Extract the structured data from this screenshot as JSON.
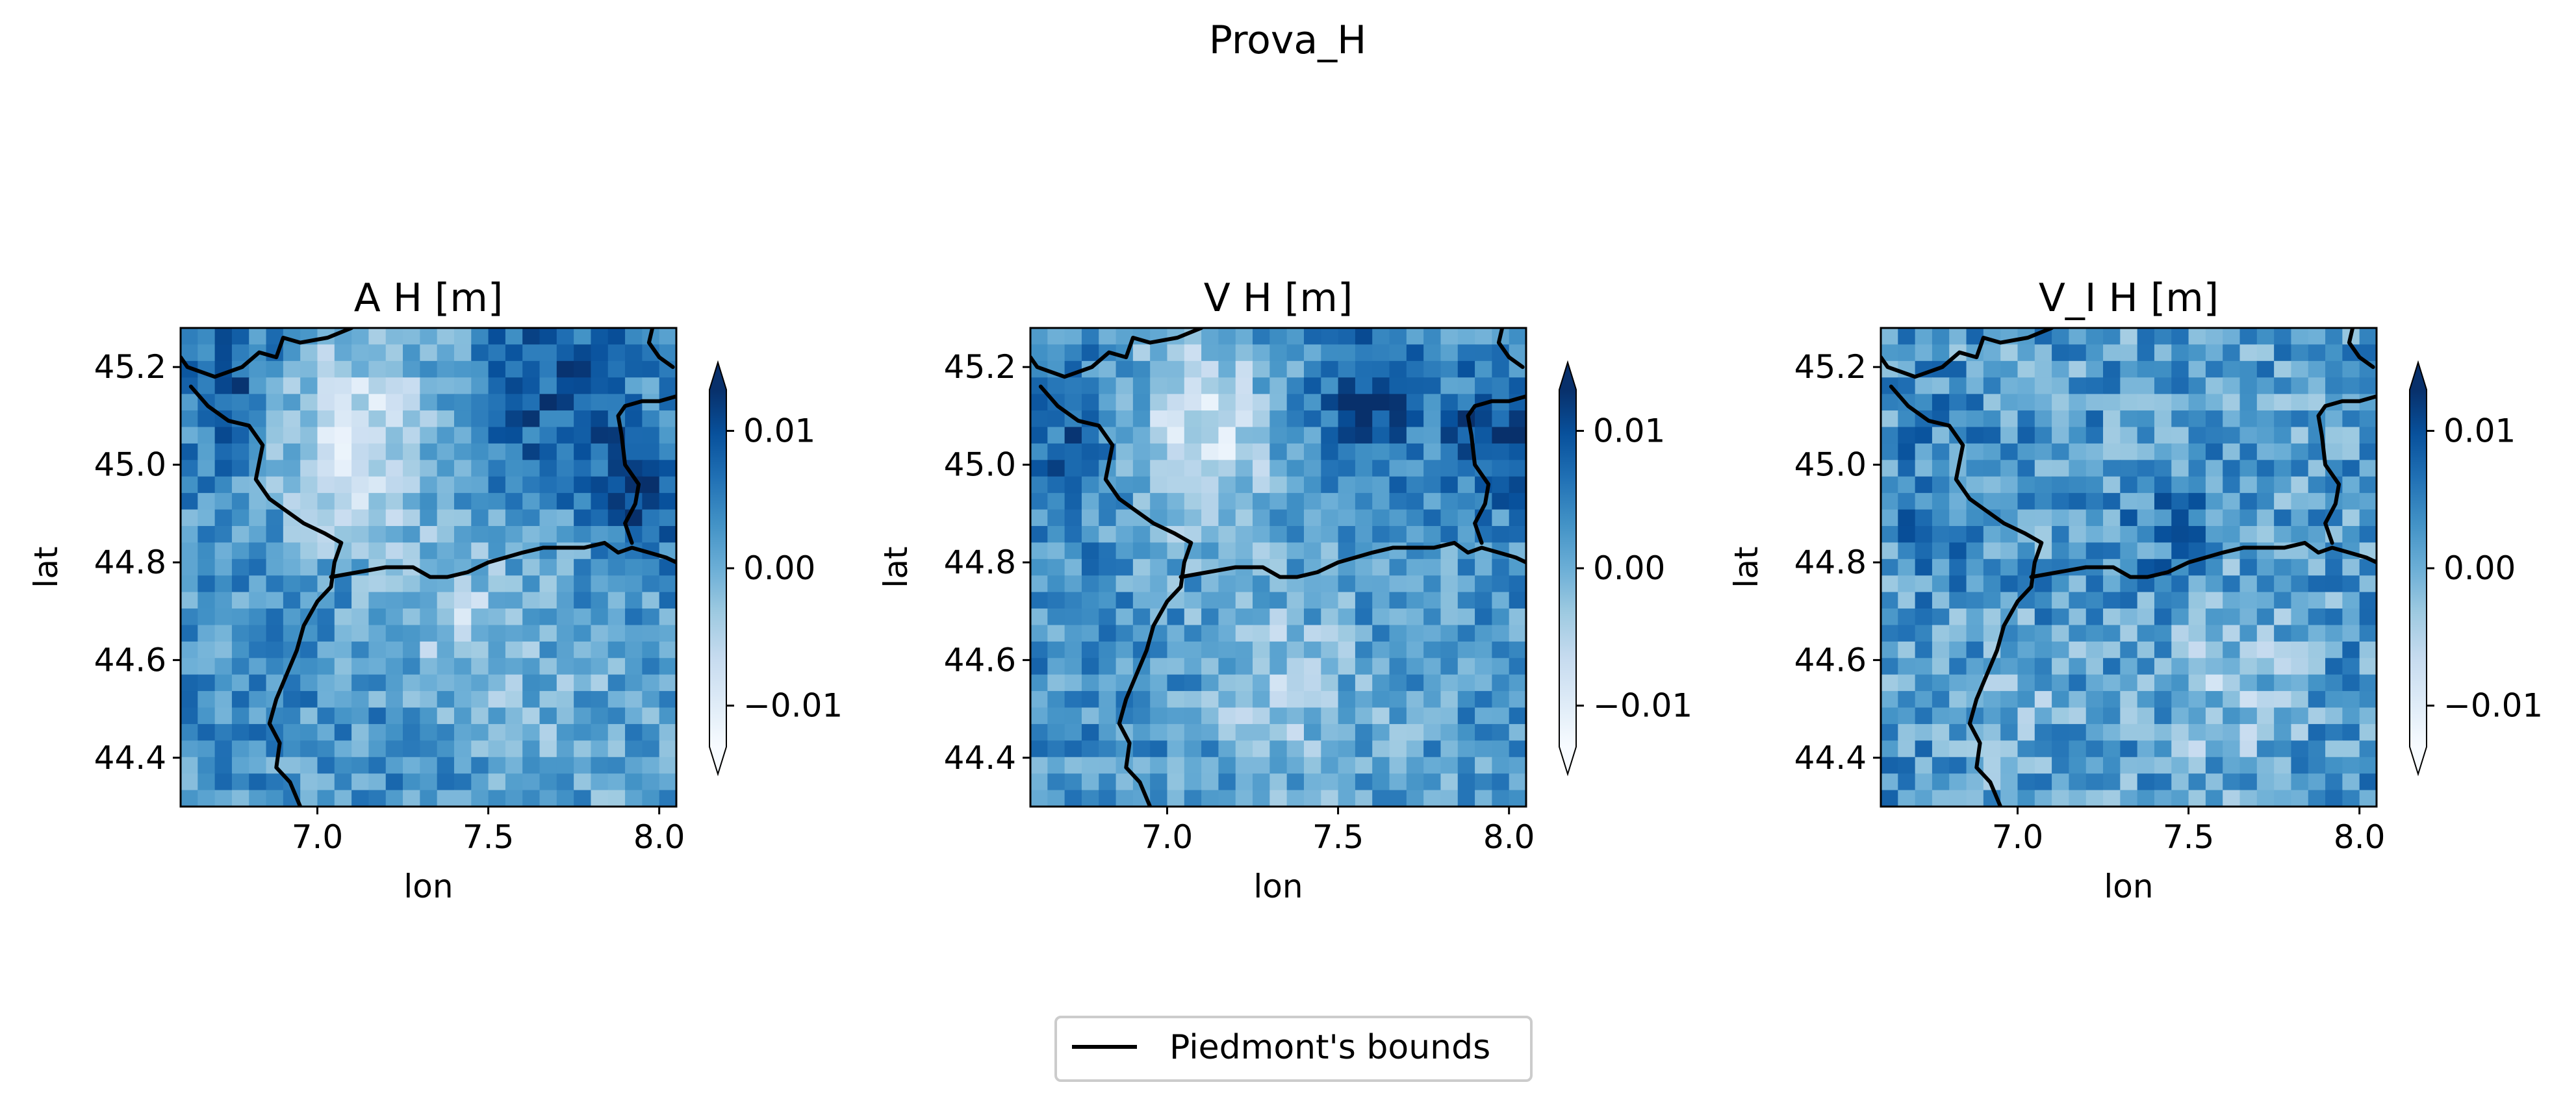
{
  "figure": {
    "suptitle": "Prova_H"
  },
  "colormap": {
    "name": "Blues",
    "stops": [
      "#f7fbff",
      "#deebf7",
      "#c6dbef",
      "#9ecae1",
      "#6baed6",
      "#4292c6",
      "#2171b5",
      "#08519c",
      "#08306b"
    ],
    "outline_color": "#000000"
  },
  "legend": {
    "label": "Piedmont's bounds",
    "line_color": "#000000",
    "placement": "bottom-center"
  },
  "chart_data": [
    {
      "type": "heatmap",
      "title": "A H [m]",
      "xlabel": "lon",
      "ylabel": "lat",
      "xlim": [
        6.6,
        8.05
      ],
      "ylim": [
        44.3,
        45.28
      ],
      "xticks": [
        7.0,
        7.5,
        8.0
      ],
      "xtick_labels": [
        "7.0",
        "7.5",
        "8.0"
      ],
      "yticks": [
        44.4,
        44.6,
        44.8,
        45.0,
        45.2
      ],
      "ytick_labels": [
        "44.4",
        "44.6",
        "44.8",
        "45.0",
        "45.2"
      ],
      "grid": "29x29 cells (values estimated)",
      "colorbar": {
        "range": [
          -0.013,
          0.013
        ],
        "extend": "both",
        "ticks": [
          -0.01,
          0.0,
          0.01
        ],
        "tick_labels": [
          "−0.01",
          "0.00",
          "0.01"
        ]
      },
      "field_seed": 1,
      "field_features": [
        {
          "lon": 6.75,
          "lat": 45.15,
          "amp": 0.006,
          "sigma": 0.15
        },
        {
          "lon": 7.1,
          "lat": 45.05,
          "amp": -0.012,
          "sigma": 0.22
        },
        {
          "lon": 7.4,
          "lat": 44.7,
          "amp": -0.007,
          "sigma": 0.18
        },
        {
          "lon": 7.7,
          "lat": 45.15,
          "amp": 0.006,
          "sigma": 0.2
        },
        {
          "lon": 7.95,
          "lat": 44.95,
          "amp": 0.01,
          "sigma": 0.12
        },
        {
          "lon": 7.7,
          "lat": 44.5,
          "amp": -0.003,
          "sigma": 0.3
        }
      ],
      "field_base": 0.003,
      "field_noise": 0.005
    },
    {
      "type": "heatmap",
      "title": "V H [m]",
      "xlabel": "lon",
      "ylabel": "lat",
      "xlim": [
        6.6,
        8.05
      ],
      "ylim": [
        44.3,
        45.28
      ],
      "xticks": [
        7.0,
        7.5,
        8.0
      ],
      "xtick_labels": [
        "7.0",
        "7.5",
        "8.0"
      ],
      "yticks": [
        44.4,
        44.6,
        44.8,
        45.0,
        45.2
      ],
      "ytick_labels": [
        "44.4",
        "44.6",
        "44.8",
        "45.0",
        "45.2"
      ],
      "grid": "29x29 cells (values estimated)",
      "colorbar": {
        "range": [
          -0.013,
          0.013
        ],
        "extend": "both",
        "ticks": [
          -0.01,
          0.0,
          0.01
        ],
        "tick_labels": [
          "−0.01",
          "0.00",
          "0.01"
        ]
      },
      "field_seed": 2,
      "field_features": [
        {
          "lon": 6.75,
          "lat": 45.05,
          "amp": 0.006,
          "sigma": 0.15
        },
        {
          "lon": 7.1,
          "lat": 45.05,
          "amp": -0.011,
          "sigma": 0.22
        },
        {
          "lon": 7.3,
          "lat": 44.55,
          "amp": -0.006,
          "sigma": 0.2
        },
        {
          "lon": 7.6,
          "lat": 45.15,
          "amp": 0.009,
          "sigma": 0.15
        },
        {
          "lon": 7.95,
          "lat": 45.05,
          "amp": 0.009,
          "sigma": 0.12
        },
        {
          "lon": 7.6,
          "lat": 44.45,
          "amp": -0.002,
          "sigma": 0.3
        }
      ],
      "field_base": 0.003,
      "field_noise": 0.005
    },
    {
      "type": "heatmap",
      "title": "V_I H [m]",
      "xlabel": "lon",
      "ylabel": "lat",
      "xlim": [
        6.6,
        8.05
      ],
      "ylim": [
        44.3,
        45.28
      ],
      "xticks": [
        7.0,
        7.5,
        8.0
      ],
      "xtick_labels": [
        "7.0",
        "7.5",
        "8.0"
      ],
      "yticks": [
        44.4,
        44.6,
        44.8,
        45.0,
        45.2
      ],
      "ytick_labels": [
        "44.4",
        "44.6",
        "44.8",
        "45.0",
        "45.2"
      ],
      "grid": "29x29 cells (values estimated)",
      "colorbar": {
        "range": [
          -0.013,
          0.013
        ],
        "extend": "both",
        "ticks": [
          -0.01,
          0.0,
          0.01
        ],
        "tick_labels": [
          "−0.01",
          "0.00",
          "0.01"
        ]
      },
      "field_seed": 3,
      "field_features": [
        {
          "lon": 7.45,
          "lat": 44.85,
          "amp": 0.004,
          "sigma": 0.15
        },
        {
          "lon": 7.6,
          "lat": 44.55,
          "amp": -0.005,
          "sigma": 0.2
        },
        {
          "lon": 7.0,
          "lat": 44.5,
          "amp": -0.003,
          "sigma": 0.15
        },
        {
          "lon": 6.75,
          "lat": 44.95,
          "amp": 0.003,
          "sigma": 0.2
        }
      ],
      "field_base": 0.002,
      "field_noise": 0.006
    }
  ],
  "boundary": {
    "description": "Piedmont's bounds (approximate outline)",
    "northwest_line": [
      [
        6.6,
        45.22
      ],
      [
        6.62,
        45.2
      ],
      [
        6.7,
        45.18
      ],
      [
        6.78,
        45.2
      ],
      [
        6.83,
        45.23
      ],
      [
        6.88,
        45.22
      ],
      [
        6.9,
        45.26
      ],
      [
        6.95,
        45.25
      ],
      [
        7.03,
        45.26
      ],
      [
        7.1,
        45.28
      ]
    ],
    "southwest_line": [
      [
        6.63,
        45.16
      ],
      [
        6.68,
        45.12
      ],
      [
        6.74,
        45.09
      ],
      [
        6.8,
        45.08
      ],
      [
        6.84,
        45.04
      ],
      [
        6.82,
        44.97
      ],
      [
        6.86,
        44.93
      ],
      [
        6.92,
        44.9
      ],
      [
        6.96,
        44.88
      ],
      [
        7.02,
        44.86
      ],
      [
        7.07,
        44.84
      ],
      [
        7.05,
        44.8
      ],
      [
        7.04,
        44.75
      ],
      [
        7.0,
        44.72
      ],
      [
        6.96,
        44.67
      ],
      [
        6.94,
        44.62
      ],
      [
        6.91,
        44.57
      ],
      [
        6.88,
        44.52
      ],
      [
        6.86,
        44.47
      ],
      [
        6.89,
        44.43
      ],
      [
        6.88,
        44.38
      ],
      [
        6.92,
        44.35
      ],
      [
        6.95,
        44.3
      ]
    ],
    "ridge_line": [
      [
        7.04,
        44.77
      ],
      [
        7.12,
        44.78
      ],
      [
        7.2,
        44.79
      ],
      [
        7.28,
        44.79
      ],
      [
        7.33,
        44.77
      ],
      [
        7.38,
        44.77
      ],
      [
        7.44,
        44.78
      ],
      [
        7.5,
        44.8
      ],
      [
        7.55,
        44.81
      ],
      [
        7.6,
        44.82
      ],
      [
        7.66,
        44.83
      ],
      [
        7.72,
        44.83
      ],
      [
        7.78,
        44.83
      ],
      [
        7.84,
        44.84
      ],
      [
        7.88,
        44.82
      ],
      [
        7.92,
        44.83
      ],
      [
        7.97,
        44.82
      ],
      [
        8.02,
        44.81
      ],
      [
        8.05,
        44.8
      ]
    ],
    "east_line": [
      [
        8.05,
        45.14
      ],
      [
        8.0,
        45.13
      ],
      [
        7.95,
        45.13
      ],
      [
        7.9,
        45.12
      ],
      [
        7.88,
        45.1
      ],
      [
        7.89,
        45.06
      ],
      [
        7.9,
        45.0
      ],
      [
        7.94,
        44.96
      ],
      [
        7.93,
        44.92
      ],
      [
        7.9,
        44.88
      ],
      [
        7.92,
        44.84
      ]
    ],
    "northeast_line": [
      [
        7.98,
        45.28
      ],
      [
        7.97,
        45.25
      ],
      [
        8.0,
        45.22
      ],
      [
        8.04,
        45.2
      ]
    ]
  }
}
